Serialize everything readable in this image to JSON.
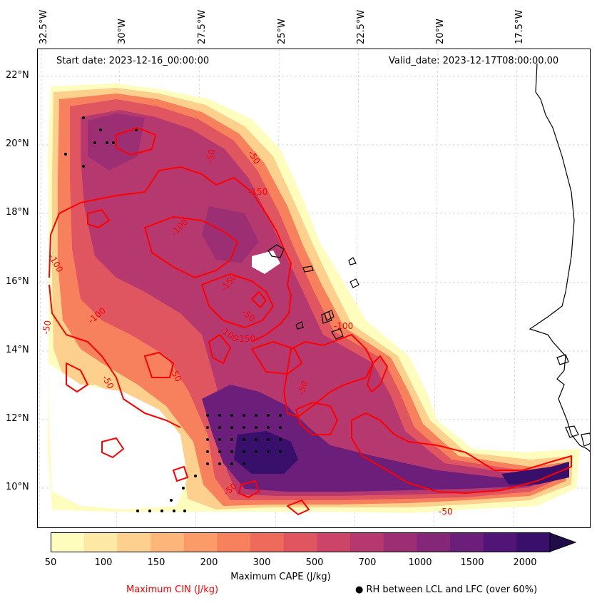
{
  "map": {
    "start_date": "Start date: 2023-12-16_00:00:00",
    "valid_date": "Valid_date: 2023-12-17T08:00:00.00",
    "longitude_labels": [
      "32.5°W",
      "30°W",
      "27.5°W",
      "25°W",
      "22.5°W",
      "20°W",
      "17.5°W"
    ],
    "latitude_labels": [
      "22°N",
      "20°N",
      "18°N",
      "16°N",
      "14°N",
      "12°N",
      "10°N"
    ],
    "cin_contour_labels": [
      "-50",
      "-100",
      "-150",
      "-50",
      "-100",
      "-100",
      "-150",
      "-50",
      "-100",
      "-150",
      "-50",
      "-50",
      "-100",
      "-50",
      "-50",
      "-50",
      "-50"
    ],
    "colors": {
      "cin_contour": "#ff0000",
      "coastline": "#000000",
      "grid": "#cccccc"
    }
  },
  "colorbar": {
    "label": "Maximum CAPE (J/kg)",
    "tick_labels": [
      "50",
      "100",
      "150",
      "200",
      "300",
      "500",
      "700",
      "1000",
      "1500",
      "2000"
    ],
    "colors": [
      "#fefdbd",
      "#fee8a5",
      "#fdd08e",
      "#fcb67a",
      "#fb9b68",
      "#f7815d",
      "#ee6a5a",
      "#e05660",
      "#cc4467",
      "#b5386f",
      "#9c2f74",
      "#842778",
      "#6b1e7a",
      "#511477",
      "#380f6a",
      "#1f0c48"
    ]
  },
  "legend": {
    "cin_label": "Maximum CIN (J/kg)",
    "rh_label": "● RH between LCL and LFC (over 60%)"
  }
}
